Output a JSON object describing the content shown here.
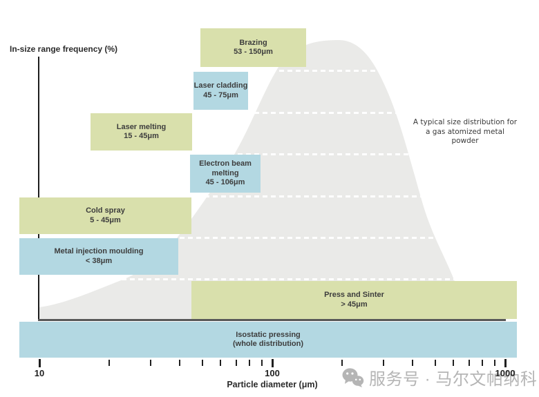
{
  "chart_data": {
    "type": "area",
    "title": "",
    "xlabel": "Particle diameter (μm)",
    "ylabel": "In-size range frequency (%)",
    "annotation": "A typical size distribution for a gas atomized metal powder",
    "annotation_lines": [
      "A typical size distribution for",
      "a gas atomized metal powder"
    ],
    "x_axis": {
      "scale": "log",
      "min": 10,
      "max": 1000,
      "ticks_labeled": [
        10,
        100,
        1000
      ],
      "ticks_minor": [
        20,
        30,
        40,
        50,
        60,
        70,
        80,
        90,
        200,
        300,
        400,
        500,
        600,
        700,
        800,
        900
      ]
    },
    "y_axis": {
      "label": "In-size range frequency (%)",
      "ticks": []
    },
    "distribution_curve": {
      "label": "A typical size distribution for a gas atomized metal powder",
      "approx_points_um_relfreq": [
        [
          10,
          4
        ],
        [
          26,
          14
        ],
        [
          40,
          30
        ],
        [
          70,
          60
        ],
        [
          105,
          89
        ],
        [
          190,
          100
        ],
        [
          310,
          82
        ],
        [
          440,
          43
        ],
        [
          600,
          14
        ],
        [
          760,
          0
        ]
      ]
    },
    "processes": [
      {
        "slug": "brazing",
        "name": "Brazing",
        "range": "53 - 150μm",
        "min_um": 53,
        "max_um": 150,
        "color": "green"
      },
      {
        "slug": "laser-cladding",
        "name": "Laser cladding",
        "range": "45 - 75μm",
        "min_um": 45,
        "max_um": 75,
        "color": "blue"
      },
      {
        "slug": "laser-melting",
        "name": "Laser melting",
        "range": "15 - 45μm",
        "min_um": 15,
        "max_um": 45,
        "color": "green"
      },
      {
        "slug": "electron-beam-melting",
        "name": "Electron beam melting",
        "range": "45 - 106μm",
        "min_um": 45,
        "max_um": 106,
        "color": "blue"
      },
      {
        "slug": "cold-spray",
        "name": "Cold spray",
        "range": "5 - 45μm",
        "min_um": 5,
        "max_um": 45,
        "color": "green"
      },
      {
        "slug": "metal-injection-moulding",
        "name": "Metal injection moulding",
        "range": "< 38μm",
        "max_um": 38,
        "color": "blue"
      },
      {
        "slug": "press-and-sinter",
        "name": "Press and Sinter",
        "range": "> 45μm",
        "min_um": 45,
        "color": "green"
      },
      {
        "slug": "isostatic-pressing",
        "name": "Isostatic pressing",
        "range": "(whole distribution)",
        "color": "blue"
      }
    ]
  },
  "watermark": {
    "icon": "wechat-icon",
    "text": "服务号 · 马尔文帕纳科"
  },
  "colors": {
    "green": "#d9e0ac",
    "blue": "#b3d8e2",
    "curve": "#eaeae8",
    "watermark": "#b5b5b5"
  }
}
